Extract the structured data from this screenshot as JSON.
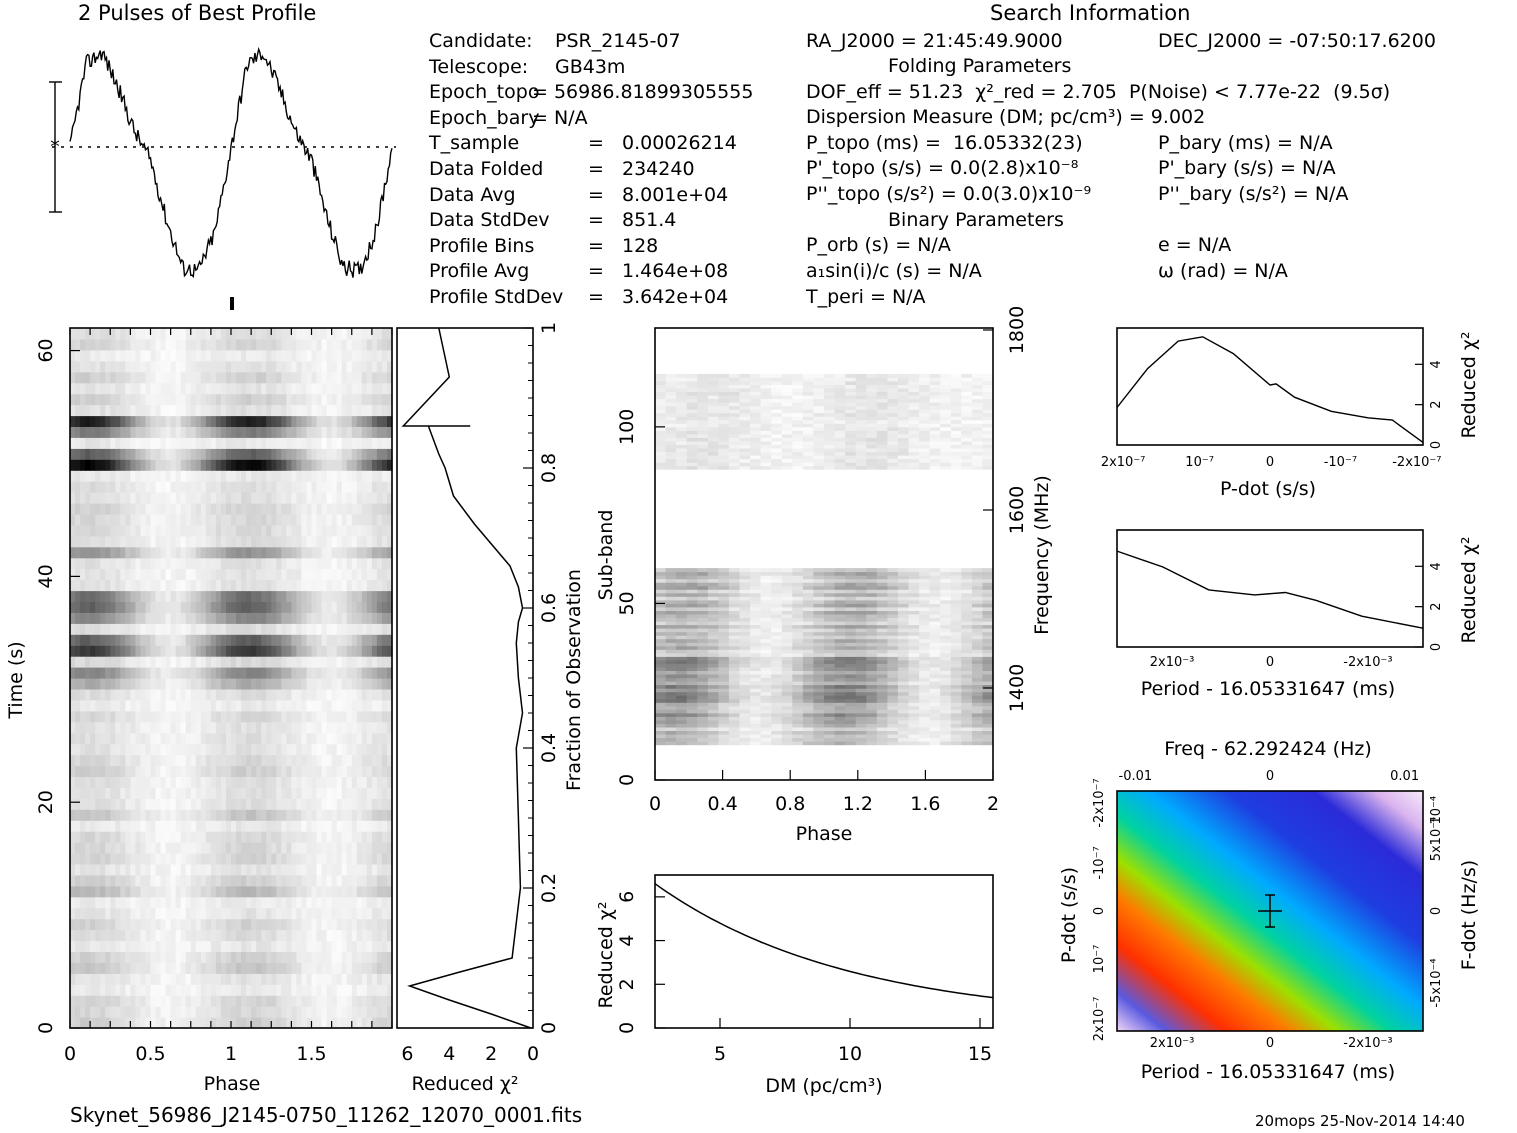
{
  "header": {
    "profile_title": "2 Pulses of Best Profile",
    "search_title": "Search Information"
  },
  "info": {
    "col1": [
      [
        "Candidate:",
        "PSR_2145-07"
      ],
      [
        "Telescope:",
        "GB43m"
      ],
      [
        "Epoch_topo",
        "= 56986.81899305555"
      ],
      [
        "Epoch_bary",
        "= N/A"
      ],
      [
        "T_sample",
        "=",
        "0.00026214"
      ],
      [
        "Data Folded",
        "=",
        "234240"
      ],
      [
        "Data Avg",
        "=",
        "8.001e+04"
      ],
      [
        "Data StdDev",
        "=",
        "851.4"
      ],
      [
        "Profile Bins",
        "=",
        "128"
      ],
      [
        "Profile Avg",
        "=",
        "1.464e+08"
      ],
      [
        "Profile StdDev",
        "=",
        "3.642e+04"
      ]
    ],
    "ra": "RA_J2000 = 21:45:49.9000",
    "dec": "DEC_J2000 = -07:50:17.6200",
    "folding_title": "Folding Parameters",
    "dof": "DOF_eff = 51.23  χ²_red = 2.705  P(Noise) < 7.77e-22  (9.5σ)",
    "dm_line": "Dispersion Measure (DM; pc/cm³) = 9.002",
    "p_topo": "P_topo (ms) =  16.05332(23)",
    "pd_topo": "P'_topo (s/s) = 0.0(2.8)x10⁻⁸",
    "pdd_topo": "P''_topo (s/s²) = 0.0(3.0)x10⁻⁹",
    "p_bary": "P_bary (ms) = N/A",
    "pd_bary": "P'_bary (s/s) = N/A",
    "pdd_bary": "P''_bary (s/s²) = N/A",
    "binary_title": "Binary Parameters",
    "porb": "P_orb (s) = N/A",
    "a1sini": "a₁sin(i)/c (s) = N/A",
    "tperi": "T_peri = N/A",
    "ecc": "e = N/A",
    "omega": "ω (rad) = N/A"
  },
  "footer": {
    "filename": "Skynet_56986_J2145-0750_11262_12070_0001.fits",
    "stamp": "20mops 25-Nov-2014 14:40"
  },
  "colors": {
    "axis": "#000000",
    "profile": "#000000"
  },
  "chart_data": [
    {
      "type": "line",
      "name": "profile",
      "title": "2 Pulses of Best Profile",
      "x": [
        0,
        0.1,
        0.2,
        0.3,
        0.4,
        0.5,
        0.6,
        0.7,
        0.8,
        0.9,
        1.0,
        1.1,
        1.2,
        1.3,
        1.4,
        1.5,
        1.6,
        1.7,
        1.8,
        1.9,
        2.0
      ],
      "y": [
        0.55,
        0.9,
        0.95,
        0.8,
        0.62,
        0.5,
        0.25,
        0.05,
        0.04,
        0.2,
        0.55,
        0.9,
        0.95,
        0.8,
        0.62,
        0.5,
        0.25,
        0.05,
        0.04,
        0.2,
        0.55
      ]
    },
    {
      "type": "heatmap",
      "name": "time-phase",
      "xlabel": "Phase",
      "ylabel": "Time (s)",
      "xticks": [
        "0",
        "0.5",
        "1",
        "1.5"
      ],
      "yticks": [
        "0",
        "20",
        "40",
        "60"
      ],
      "xlim": [
        0,
        2
      ],
      "ylim": [
        0,
        62
      ]
    },
    {
      "type": "line",
      "name": "reduced-chisq-vs-time",
      "xlabel": "Reduced χ²",
      "ylabel": "Fraction of Observation",
      "xticks": [
        "6",
        "4",
        "2",
        "0"
      ],
      "yticks": [
        "0",
        "0.2",
        "0.4",
        "0.6",
        "0.8",
        "1"
      ],
      "x": [
        0.1,
        2,
        4,
        5.9,
        3.5,
        1.0,
        0.6,
        0.7,
        0.8,
        0.5,
        0.7,
        0.8,
        0.7,
        0.5,
        0.7,
        1.1,
        2.8,
        3.8,
        4.2,
        4.5,
        5.0,
        3.0,
        6.2,
        4.0,
        4.5
      ],
      "y": [
        0,
        0.02,
        0.04,
        0.06,
        0.08,
        0.1,
        0.2,
        0.3,
        0.4,
        0.45,
        0.5,
        0.55,
        0.58,
        0.6,
        0.63,
        0.66,
        0.72,
        0.76,
        0.8,
        0.82,
        0.86,
        0.86,
        0.86,
        0.93,
        1.0
      ]
    },
    {
      "type": "heatmap",
      "name": "subband-phase",
      "xlabel": "Phase",
      "ylabel": "Sub-band",
      "y2label": "Frequency (MHz)",
      "xticks": [
        "0",
        "0.4",
        "0.8",
        "1.2",
        "1.6",
        "2"
      ],
      "yticks": [
        "0",
        "50",
        "100"
      ],
      "y2ticks": [
        "1400",
        "1600",
        "1800"
      ],
      "xlim": [
        0,
        2
      ],
      "ylim": [
        0,
        128
      ]
    },
    {
      "type": "line",
      "name": "dm-curve",
      "xlabel": "DM (pc/cm³)",
      "ylabel": "Reduced χ²",
      "xticks": [
        "5",
        "10",
        "15"
      ],
      "yticks": [
        "0",
        "2",
        "4",
        "6"
      ],
      "xlim": [
        2.5,
        15.5
      ],
      "ylim": [
        0,
        7
      ],
      "x": [
        2.5,
        4,
        6,
        8,
        10,
        12,
        14,
        15.5
      ],
      "y": [
        6.6,
        5.5,
        4.3,
        3.4,
        2.6,
        1.9,
        1.3,
        1.0
      ]
    },
    {
      "type": "line",
      "name": "pdot-curve",
      "xlabel": "P-dot (s/s)",
      "ylabel": "Reduced χ²",
      "xticks": [
        "2x10⁻⁷",
        "10⁻⁷",
        "0",
        "-10⁻⁷",
        "-2x10⁻⁷"
      ],
      "yticks": [
        "0",
        "2",
        "4"
      ],
      "x": [
        0,
        0.1,
        0.2,
        0.28,
        0.38,
        0.5,
        0.52,
        0.58,
        0.7,
        0.82,
        0.9,
        1.0
      ],
      "y": [
        1.8,
        3.8,
        5.2,
        5.4,
        4.6,
        3.0,
        3.0,
        2.4,
        1.6,
        1.3,
        1.2,
        0.1
      ]
    },
    {
      "type": "line",
      "name": "period-curve",
      "xlabel": "Period - 16.05331647 (ms)",
      "ylabel": "Reduced χ²",
      "xticks": [
        "2x10⁻³",
        "0",
        "-2x10⁻³"
      ],
      "yticks": [
        "0",
        "2",
        "4"
      ],
      "x": [
        0,
        0.15,
        0.3,
        0.45,
        0.55,
        0.65,
        0.8,
        1.0
      ],
      "y": [
        4.8,
        3.9,
        2.9,
        2.6,
        2.7,
        2.3,
        1.6,
        1.0
      ]
    },
    {
      "type": "heatmap",
      "name": "p-pdot-plane",
      "title": "Freq - 62.292424 (Hz)",
      "xlabel": "Period - 16.05331647 (ms)",
      "ylabel": "P-dot (s/s)",
      "y2label": "F-dot (Hz/s)",
      "xticks": [
        "2x10⁻³",
        "0",
        "-2x10⁻³"
      ],
      "x2ticks": [
        "-0.01",
        "0",
        "0.01"
      ],
      "yticks": [
        "2x10⁻⁷",
        "10⁻⁷",
        "0",
        "-10⁻⁷",
        "-2x10⁻⁷"
      ],
      "y2ticks": [
        "-5x10⁻⁴",
        "0",
        "5x10⁻⁴",
        "10⁻⁴"
      ]
    }
  ]
}
